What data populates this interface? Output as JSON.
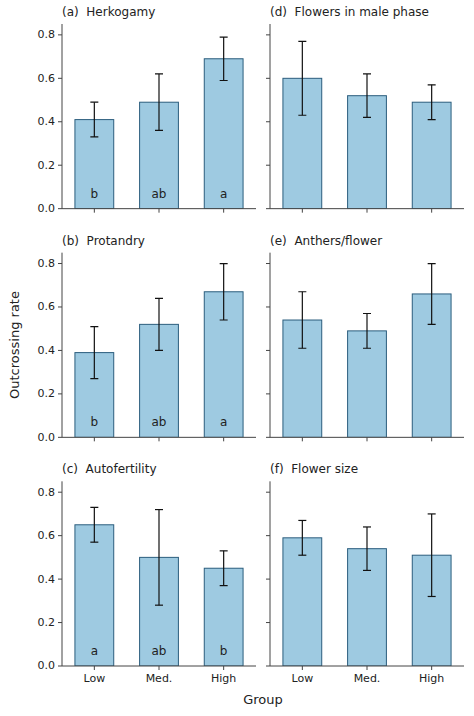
{
  "chart_data": [
    {
      "type": "bar",
      "title": "(a)  Herkogamy",
      "categories": [
        "Low",
        "Med.",
        "High"
      ],
      "values": [
        0.41,
        0.49,
        0.69
      ],
      "error_upper": [
        0.08,
        0.13,
        0.1
      ],
      "error_lower": [
        0.08,
        0.13,
        0.1
      ],
      "letters": [
        "b",
        "ab",
        "a"
      ],
      "color": "#9ecae1",
      "ylim": [
        0.0,
        0.85
      ],
      "yticks": [
        {
          "value": 0.0,
          "label": "0.0"
        },
        0.2,
        0.4,
        0.6,
        0.8
      ],
      "tick_labels": "y"
    },
    {
      "type": "bar",
      "title": "(d)  Flowers in male phase",
      "categories": [
        "Low",
        "Med.",
        "High"
      ],
      "values": [
        0.6,
        0.52,
        0.49
      ],
      "error_upper": [
        0.17,
        0.1,
        0.08
      ],
      "error_lower": [
        0.17,
        0.1,
        0.08
      ],
      "color": "#9ecae1",
      "ylim": [
        0.0,
        0.85
      ],
      "yticks": [
        {
          "value": 0.0,
          "label": "0.0"
        },
        0.2,
        0.4,
        0.6,
        0.8
      ],
      "tick_labels": false
    },
    {
      "type": "bar",
      "title": "(b)  Protandry",
      "categories": [
        "Low",
        "Med.",
        "High"
      ],
      "values": [
        0.39,
        0.52,
        0.67
      ],
      "error_upper": [
        0.12,
        0.12,
        0.13
      ],
      "error_lower": [
        0.12,
        0.12,
        0.13
      ],
      "letters": [
        "b",
        "ab",
        "a"
      ],
      "color": "#9ecae1",
      "ylabel": "Outcrossing rate",
      "ylim": [
        0.0,
        0.85
      ],
      "yticks": [
        {
          "value": 0.0,
          "label": "0.0"
        },
        0.2,
        0.4,
        0.6,
        0.8
      ],
      "tick_labels": "y"
    },
    {
      "type": "bar",
      "title": "(e)  Anthers/flower",
      "categories": [
        "Low",
        "Med.",
        "High"
      ],
      "values": [
        0.54,
        0.49,
        0.66
      ],
      "error_upper": [
        0.13,
        0.08,
        0.14
      ],
      "error_lower": [
        0.13,
        0.08,
        0.14
      ],
      "color": "#9ecae1",
      "ylim": [
        0.0,
        0.85
      ],
      "yticks": [
        {
          "value": 0.0,
          "label": "0.0"
        },
        0.2,
        0.4,
        0.6,
        0.8
      ],
      "tick_labels": false
    },
    {
      "type": "bar",
      "title": "(c)  Autofertility",
      "categories": [
        "Low",
        "Med.",
        "High"
      ],
      "values": [
        0.65,
        0.5,
        0.45
      ],
      "error_upper": [
        0.08,
        0.22,
        0.08
      ],
      "error_lower": [
        0.08,
        0.22,
        0.08
      ],
      "letters": [
        "a",
        "ab",
        "b"
      ],
      "color": "#9ecae1",
      "xlabel": "Group",
      "ylim": [
        0.0,
        0.85
      ],
      "yticks": [
        {
          "value": 0.0,
          "label": "0.0"
        },
        0.2,
        0.4,
        0.6,
        0.8
      ]
    },
    {
      "type": "bar",
      "title": "(f)  Flower size",
      "categories": [
        "Low",
        "Med.",
        "High"
      ],
      "values": [
        0.59,
        0.54,
        0.51
      ],
      "error_upper": [
        0.08,
        0.1,
        0.19
      ],
      "error_lower": [
        0.08,
        0.1,
        0.19
      ],
      "color": "#9ecae1",
      "ylim": [
        0.0,
        0.85
      ],
      "yticks": [
        {
          "value": 0.0,
          "label": "0.0"
        },
        0.2,
        0.4,
        0.6,
        0.8
      ],
      "tick_labels": "x"
    }
  ]
}
